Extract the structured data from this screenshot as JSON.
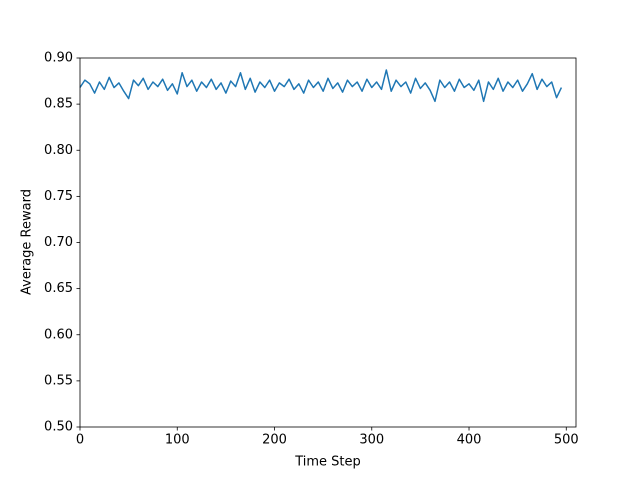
{
  "chart_data": {
    "type": "line",
    "xlabel": "Time Step",
    "ylabel": "Average Reward",
    "x": [
      0,
      5,
      10,
      15,
      20,
      25,
      30,
      35,
      40,
      45,
      50,
      55,
      60,
      65,
      70,
      75,
      80,
      85,
      90,
      95,
      100,
      105,
      110,
      115,
      120,
      125,
      130,
      135,
      140,
      145,
      150,
      155,
      160,
      165,
      170,
      175,
      180,
      185,
      190,
      195,
      200,
      205,
      210,
      215,
      220,
      225,
      230,
      235,
      240,
      245,
      250,
      255,
      260,
      265,
      270,
      275,
      280,
      285,
      290,
      295,
      300,
      305,
      310,
      315,
      320,
      325,
      330,
      335,
      340,
      345,
      350,
      355,
      360,
      365,
      370,
      375,
      380,
      385,
      390,
      395,
      400,
      405,
      410,
      415,
      420,
      425,
      430,
      435,
      440,
      445,
      450,
      455,
      460,
      465,
      470,
      475,
      480,
      485,
      490,
      495
    ],
    "series": [
      {
        "color": "#1f77b4",
        "values": [
          0.868,
          0.876,
          0.872,
          0.862,
          0.874,
          0.866,
          0.879,
          0.868,
          0.873,
          0.864,
          0.856,
          0.876,
          0.87,
          0.878,
          0.866,
          0.874,
          0.869,
          0.877,
          0.865,
          0.872,
          0.861,
          0.884,
          0.869,
          0.876,
          0.864,
          0.874,
          0.868,
          0.877,
          0.866,
          0.873,
          0.862,
          0.875,
          0.869,
          0.884,
          0.866,
          0.878,
          0.863,
          0.874,
          0.868,
          0.876,
          0.864,
          0.873,
          0.869,
          0.877,
          0.866,
          0.872,
          0.862,
          0.876,
          0.868,
          0.874,
          0.864,
          0.878,
          0.867,
          0.873,
          0.863,
          0.876,
          0.869,
          0.874,
          0.864,
          0.877,
          0.868,
          0.874,
          0.866,
          0.887,
          0.864,
          0.876,
          0.869,
          0.874,
          0.862,
          0.878,
          0.867,
          0.873,
          0.865,
          0.853,
          0.876,
          0.868,
          0.874,
          0.864,
          0.877,
          0.868,
          0.872,
          0.865,
          0.876,
          0.853,
          0.874,
          0.866,
          0.878,
          0.864,
          0.874,
          0.868,
          0.876,
          0.864,
          0.872,
          0.883,
          0.866,
          0.877,
          0.869,
          0.874,
          0.857,
          0.868
        ]
      }
    ],
    "xlim": [
      0,
      510
    ],
    "xticks": [
      0,
      100,
      200,
      300,
      400,
      500
    ],
    "ylim": [
      0.5,
      0.9
    ],
    "yticks": [
      {
        "value": 0.5,
        "label": "0.50"
      },
      0.55,
      {
        "value": 0.6,
        "label": "0.60"
      },
      0.65,
      {
        "value": 0.7,
        "label": "0.70"
      },
      0.75,
      {
        "value": 0.8,
        "label": "0.80"
      },
      0.85,
      {
        "value": 0.9,
        "label": "0.90"
      }
    ]
  }
}
